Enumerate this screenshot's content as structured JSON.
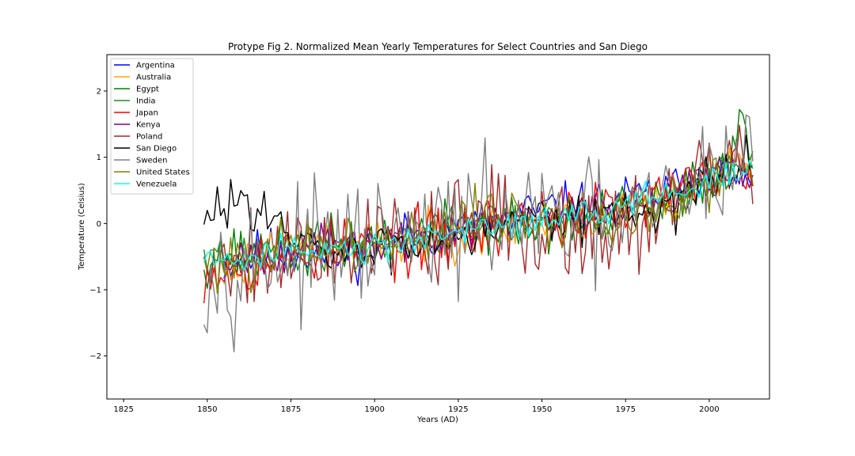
{
  "chart_data": {
    "type": "line",
    "title": "Protype Fig 2. Normalized Mean Yearly Temperatures for Select Countries and San Diego",
    "xlabel": "Years (AD)",
    "ylabel": "Temperature (Celsius)",
    "xlim": [
      1820,
      2018
    ],
    "ylim": [
      -2.65,
      2.55
    ],
    "xticks": [
      1825,
      1850,
      1875,
      1900,
      1925,
      1950,
      1975,
      2000
    ],
    "yticks": [
      -2,
      -1,
      0,
      1,
      2
    ],
    "legend_position": "top-left",
    "grid": false,
    "x_start": 1849,
    "x_end": 2013,
    "series": [
      {
        "name": "Argentina",
        "color": "#0000ff",
        "start": 1855,
        "end": 2013,
        "anchors": [
          [
            1855,
            -0.6
          ],
          [
            1870,
            -0.4
          ],
          [
            1890,
            -0.5
          ],
          [
            1910,
            -0.2
          ],
          [
            1930,
            -0.05
          ],
          [
            1950,
            0.2
          ],
          [
            1970,
            0.3
          ],
          [
            1990,
            0.5
          ],
          [
            2005,
            0.8
          ],
          [
            2013,
            0.6
          ]
        ],
        "noise": 0.35,
        "seed": 11
      },
      {
        "name": "Australia",
        "color": "#ffa500",
        "start": 1855,
        "end": 2013,
        "anchors": [
          [
            1855,
            -0.8
          ],
          [
            1870,
            -0.3
          ],
          [
            1890,
            -0.35
          ],
          [
            1910,
            -0.3
          ],
          [
            1930,
            -0.1
          ],
          [
            1950,
            0.0
          ],
          [
            1970,
            0.2
          ],
          [
            1990,
            0.45
          ],
          [
            2005,
            0.9
          ],
          [
            2013,
            0.85
          ]
        ],
        "noise": 0.35,
        "seed": 23
      },
      {
        "name": "Egypt",
        "color": "#008000",
        "start": 1849,
        "end": 2013,
        "anchors": [
          [
            1849,
            -0.5
          ],
          [
            1870,
            -0.4
          ],
          [
            1890,
            -0.3
          ],
          [
            1910,
            -0.2
          ],
          [
            1930,
            0.0
          ],
          [
            1950,
            -0.1
          ],
          [
            1970,
            0.1
          ],
          [
            1990,
            0.4
          ],
          [
            2005,
            0.9
          ],
          [
            2010,
            1.5
          ],
          [
            2013,
            1.0
          ]
        ],
        "noise": 0.4,
        "seed": 37
      },
      {
        "name": "India",
        "color": "#228b22",
        "start": 1849,
        "end": 2013,
        "anchors": [
          [
            1849,
            -0.6
          ],
          [
            1870,
            -0.45
          ],
          [
            1890,
            -0.35
          ],
          [
            1910,
            -0.25
          ],
          [
            1930,
            0.05
          ],
          [
            1950,
            0.0
          ],
          [
            1970,
            0.1
          ],
          [
            1990,
            0.35
          ],
          [
            2005,
            0.8
          ],
          [
            2013,
            0.9
          ]
        ],
        "noise": 0.3,
        "seed": 41
      },
      {
        "name": "Japan",
        "color": "#ff0000",
        "start": 1849,
        "end": 2013,
        "anchors": [
          [
            1849,
            -0.7
          ],
          [
            1870,
            -0.5
          ],
          [
            1890,
            -0.4
          ],
          [
            1910,
            -0.3
          ],
          [
            1930,
            -0.1
          ],
          [
            1950,
            0.1
          ],
          [
            1970,
            0.15
          ],
          [
            1990,
            0.45
          ],
          [
            2005,
            0.8
          ],
          [
            2013,
            0.8
          ]
        ],
        "noise": 0.45,
        "seed": 53
      },
      {
        "name": "Kenya",
        "color": "#800080",
        "start": 1855,
        "end": 2013,
        "anchors": [
          [
            1855,
            -0.5
          ],
          [
            1870,
            -0.4
          ],
          [
            1890,
            -0.35
          ],
          [
            1910,
            -0.25
          ],
          [
            1930,
            -0.05
          ],
          [
            1950,
            0.1
          ],
          [
            1970,
            0.2
          ],
          [
            1990,
            0.45
          ],
          [
            2005,
            0.85
          ],
          [
            2013,
            0.9
          ]
        ],
        "noise": 0.3,
        "seed": 67
      },
      {
        "name": "Poland",
        "color": "#a52a2a",
        "start": 1849,
        "end": 2013,
        "anchors": [
          [
            1849,
            -0.6
          ],
          [
            1870,
            -0.4
          ],
          [
            1890,
            -0.3
          ],
          [
            1910,
            -0.2
          ],
          [
            1930,
            0.0
          ],
          [
            1950,
            0.0
          ],
          [
            1970,
            -0.1
          ],
          [
            1990,
            0.4
          ],
          [
            2005,
            0.9
          ],
          [
            2013,
            0.9
          ]
        ],
        "noise": 0.75,
        "seed": 79
      },
      {
        "name": "San Diego",
        "color": "#000000",
        "start": 1849,
        "end": 2013,
        "anchors": [
          [
            1849,
            -0.1
          ],
          [
            1855,
            0.3
          ],
          [
            1865,
            0.4
          ],
          [
            1875,
            -0.3
          ],
          [
            1890,
            -0.5
          ],
          [
            1910,
            -0.3
          ],
          [
            1930,
            -0.1
          ],
          [
            1950,
            0.2
          ],
          [
            1970,
            0.1
          ],
          [
            1990,
            0.3
          ],
          [
            2005,
            0.8
          ],
          [
            2013,
            0.95
          ]
        ],
        "noise": 0.35,
        "seed": 83
      },
      {
        "name": "Sweden",
        "color": "#808080",
        "start": 1849,
        "end": 2013,
        "anchors": [
          [
            1849,
            -0.7
          ],
          [
            1870,
            -0.5
          ],
          [
            1890,
            -0.4
          ],
          [
            1910,
            -0.3
          ],
          [
            1930,
            0.0
          ],
          [
            1950,
            0.1
          ],
          [
            1970,
            -0.1
          ],
          [
            1990,
            0.4
          ],
          [
            2005,
            0.9
          ],
          [
            2013,
            1.1
          ]
        ],
        "noise": 0.85,
        "seed": 97
      },
      {
        "name": "United States",
        "color": "#808000",
        "start": 1849,
        "end": 2013,
        "anchors": [
          [
            1849,
            -0.6
          ],
          [
            1870,
            -0.45
          ],
          [
            1890,
            -0.35
          ],
          [
            1910,
            -0.3
          ],
          [
            1930,
            0.2
          ],
          [
            1950,
            0.05
          ],
          [
            1970,
            -0.05
          ],
          [
            1990,
            0.35
          ],
          [
            2005,
            0.75
          ],
          [
            2013,
            0.85
          ]
        ],
        "noise": 0.4,
        "seed": 101
      },
      {
        "name": "Venezuela",
        "color": "#00ffff",
        "start": 1849,
        "end": 2013,
        "anchors": [
          [
            1849,
            -0.55
          ],
          [
            1870,
            -0.45
          ],
          [
            1890,
            -0.4
          ],
          [
            1910,
            -0.3
          ],
          [
            1930,
            -0.05
          ],
          [
            1950,
            0.05
          ],
          [
            1970,
            0.2
          ],
          [
            1990,
            0.45
          ],
          [
            2005,
            0.7
          ],
          [
            2013,
            0.8
          ]
        ],
        "noise": 0.2,
        "seed": 107
      }
    ]
  }
}
